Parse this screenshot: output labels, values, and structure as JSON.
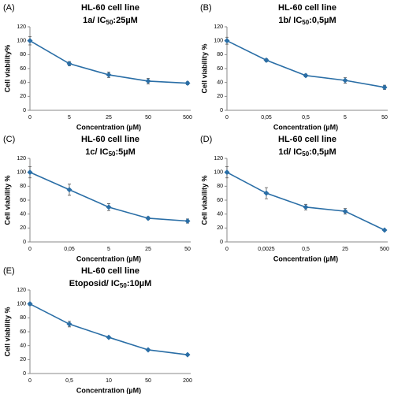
{
  "chart_data": [
    {
      "type": "line",
      "panel": "(A)",
      "title": "HL-60 cell line",
      "subtitle": {
        "prefix": "1a/ IC",
        "subscript": "50",
        "suffix": ":25µM"
      },
      "x_label": "Concentration (µM)",
      "y_label": "Cell viability%",
      "categories": [
        "0",
        "5",
        "25",
        "50",
        "500"
      ],
      "values": [
        100,
        67,
        51,
        42,
        39
      ],
      "errors": [
        6,
        3,
        4,
        4,
        2
      ],
      "color": "#2a6ea6",
      "ylim": [
        0,
        120
      ],
      "yticks": [
        0,
        20,
        40,
        60,
        80,
        100,
        120
      ]
    },
    {
      "type": "line",
      "panel": "(B)",
      "title": "HL-60 cell line",
      "subtitle": {
        "prefix": "1b/ IC",
        "subscript": "50",
        "suffix": ":0,5µM"
      },
      "x_label": "Concentration (µM)",
      "y_label": "Cell viability %",
      "categories": [
        "0",
        "0,05",
        "0,5",
        "5",
        "50"
      ],
      "values": [
        100,
        72,
        50,
        43,
        33
      ],
      "errors": [
        5,
        2,
        2,
        4,
        3
      ],
      "color": "#2a6ea6",
      "ylim": [
        0,
        120
      ],
      "yticks": [
        0,
        20,
        40,
        60,
        80,
        100,
        120
      ]
    },
    {
      "type": "line",
      "panel": "(C)",
      "title": "HL-60 cell line",
      "subtitle": {
        "prefix": "1c/ IC",
        "subscript": "50",
        "suffix": ":5µM"
      },
      "x_label": "Concentration (µM)",
      "y_label": "Cell viability %",
      "categories": [
        "0",
        "0,05",
        "5",
        "25",
        "50"
      ],
      "values": [
        100,
        75,
        50,
        34,
        30
      ],
      "errors": [
        8,
        8,
        5,
        2,
        3
      ],
      "color": "#2a6ea6",
      "ylim": [
        0,
        120
      ],
      "yticks": [
        0,
        20,
        40,
        60,
        80,
        100,
        120
      ]
    },
    {
      "type": "line",
      "panel": "(D)",
      "title": "HL-60 cell line",
      "subtitle": {
        "prefix": "1d/ IC",
        "subscript": "50",
        "suffix": ":0,5µM"
      },
      "x_label": "Concentration (µM)",
      "y_label": "Cell viability %",
      "categories": [
        "0",
        "0,0025",
        "0,5",
        "25",
        "500"
      ],
      "values": [
        100,
        70,
        50,
        44,
        17
      ],
      "errors": [
        8,
        8,
        4,
        4,
        1
      ],
      "color": "#2a6ea6",
      "ylim": [
        0,
        120
      ],
      "yticks": [
        0,
        20,
        40,
        60,
        80,
        100,
        120
      ]
    },
    {
      "type": "line",
      "panel": "(E)",
      "title": "HL-60 cell line",
      "subtitle": {
        "prefix": "Etoposid/ IC",
        "subscript": "50",
        "suffix": ":10µM"
      },
      "x_label": "Concentration (µM)",
      "y_label": "Cell viability %",
      "categories": [
        "0",
        "0,5",
        "10",
        "50",
        "200"
      ],
      "values": [
        100,
        71,
        52,
        34,
        27
      ],
      "errors": [
        2,
        4,
        1,
        1,
        1
      ],
      "color": "#2a6ea6",
      "ylim": [
        0,
        120
      ],
      "yticks": [
        0,
        20,
        40,
        60,
        80,
        100,
        120
      ]
    }
  ]
}
